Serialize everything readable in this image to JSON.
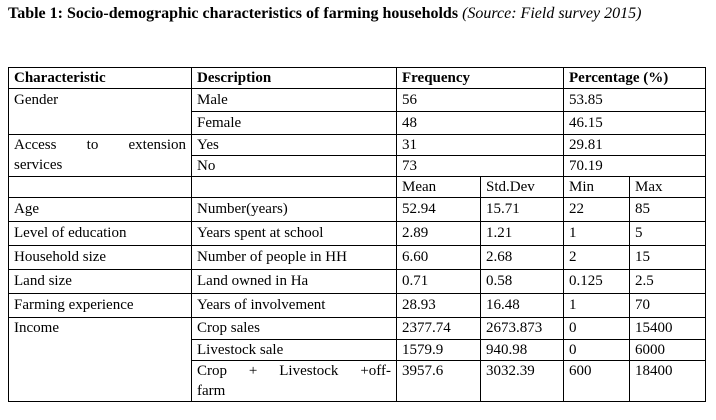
{
  "caption": {
    "title": "Table 1: Socio-demographic characteristics of farming households",
    "source": "(Source: Field survey 2015)"
  },
  "headers": {
    "characteristic": "Characteristic",
    "description": "Description",
    "frequency": "Frequency",
    "percentage": "Percentage (%)"
  },
  "gender": {
    "label": "Gender",
    "rows": [
      {
        "description": "Male",
        "frequency": "56",
        "percentage": "53.85"
      },
      {
        "description": "Female",
        "frequency": "48",
        "percentage": "46.15"
      }
    ]
  },
  "extension": {
    "label_line1": "Access to extension",
    "label_line2": "services",
    "rows": [
      {
        "description": "Yes",
        "frequency": "31",
        "percentage": "29.81"
      },
      {
        "description": "No",
        "frequency": "73",
        "percentage": "70.19"
      }
    ]
  },
  "subheaders": {
    "mean": "Mean",
    "std_dev": "Std.Dev",
    "min": "Min",
    "max": "Max"
  },
  "stats": [
    {
      "characteristic": "Age",
      "description": "Number(years)",
      "mean": "52.94",
      "std_dev": "15.71",
      "min": "22",
      "max": "85"
    },
    {
      "characteristic": "Level of education",
      "description": "Years spent at school",
      "mean": "2.89",
      "std_dev": "1.21",
      "min": "1",
      "max": "5"
    },
    {
      "characteristic": "Household size",
      "description": "Number of people in HH",
      "mean": "6.60",
      "std_dev": "2.68",
      "min": "2",
      "max": "15"
    },
    {
      "characteristic": "Land size",
      "description": "Land owned in Ha",
      "mean": "0.71",
      "std_dev": "0.58",
      "min": "0.125",
      "max": "2.5"
    },
    {
      "characteristic": "Farming experience",
      "description": "Years of involvement",
      "mean": "28.93",
      "std_dev": "16.48",
      "min": "1",
      "max": "70"
    }
  ],
  "income": {
    "label": "Income",
    "rows": [
      {
        "description": "Crop sales",
        "mean": "2377.74",
        "std_dev": "2673.873",
        "min": "0",
        "max": "15400"
      },
      {
        "description": "Livestock sale",
        "mean": "1579.9",
        "std_dev": "940.98",
        "min": "0",
        "max": "6000"
      },
      {
        "description_line1": "Crop + Livestock +off-",
        "description_line2": "farm",
        "mean": "3957.6",
        "std_dev": "3032.39",
        "min": "600",
        "max": "18400"
      }
    ]
  }
}
